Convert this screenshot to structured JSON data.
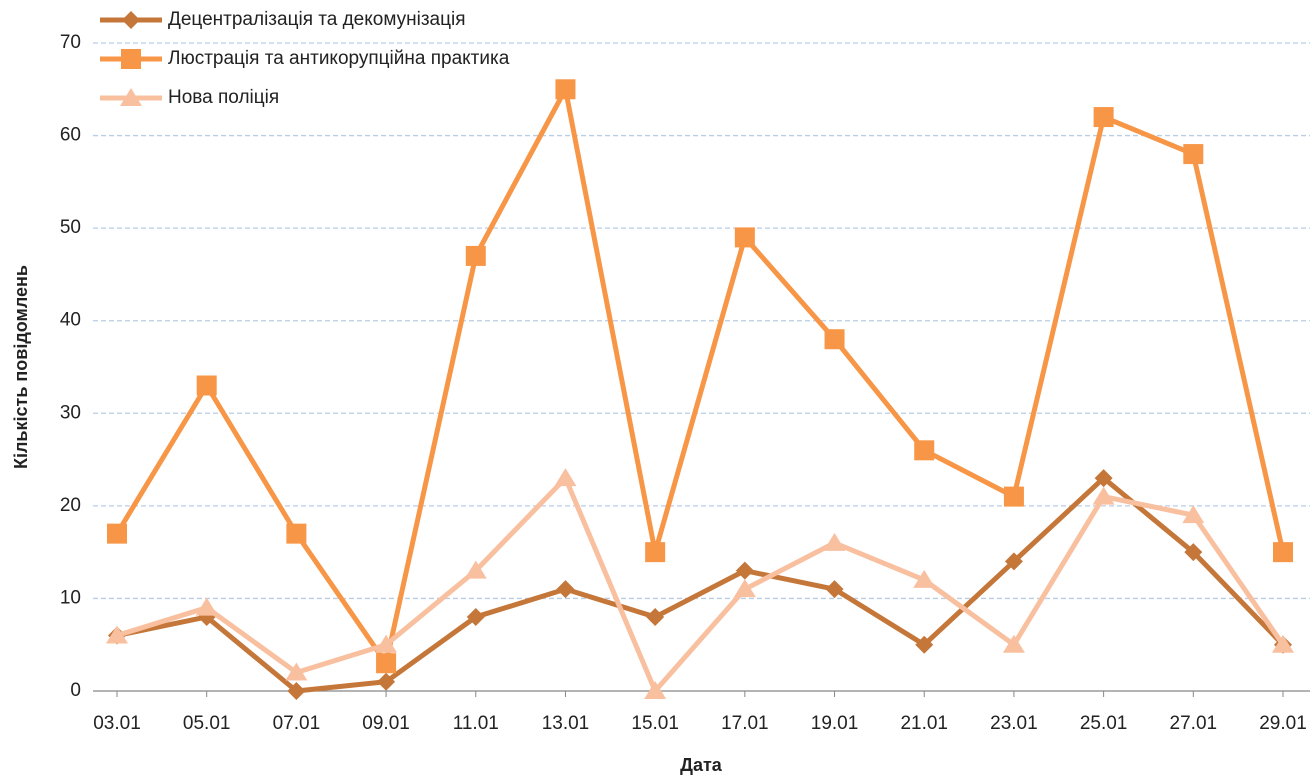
{
  "chart_data": {
    "type": "line",
    "categories": [
      "03.01",
      "05.01",
      "07.01",
      "09.01",
      "11.01",
      "13.01",
      "15.01",
      "17.01",
      "19.01",
      "21.01",
      "23.01",
      "25.01",
      "27.01",
      "29.01"
    ],
    "series": [
      {
        "name": "Децентралізація та декомунізація",
        "color": "#c5773a",
        "marker": "diamond",
        "values": [
          6,
          8,
          0,
          1,
          8,
          11,
          8,
          13,
          11,
          5,
          14,
          23,
          15,
          5
        ]
      },
      {
        "name": "Люстрація та антикорупційна практика",
        "color": "#f79646",
        "marker": "square",
        "values": [
          17,
          33,
          17,
          3,
          47,
          65,
          15,
          49,
          38,
          26,
          21,
          62,
          58,
          15
        ]
      },
      {
        "name": "Нова поліція",
        "color": "#f9c0a0",
        "marker": "triangle",
        "values": [
          6,
          9,
          2,
          5,
          13,
          23,
          0,
          11,
          16,
          12,
          5,
          21,
          19,
          5
        ]
      }
    ],
    "x_label": "Дата",
    "y_label": "Кількість повідомлень",
    "ylim": [
      0,
      70
    ],
    "yticks": [
      0,
      10,
      20,
      30,
      40,
      50,
      60,
      70
    ],
    "grid": true,
    "legend": "top-left"
  }
}
